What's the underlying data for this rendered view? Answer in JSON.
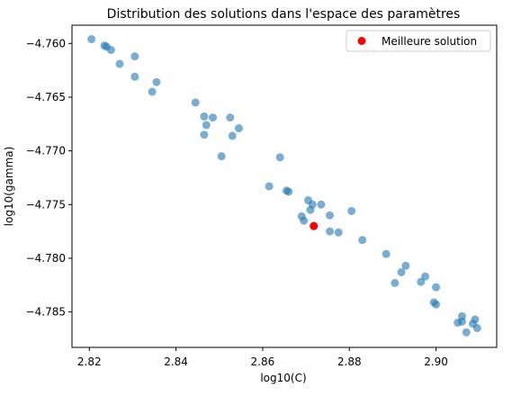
{
  "chart_data": {
    "type": "scatter",
    "title": "Distribution des solutions dans l'espace des paramètres",
    "xlabel": "log10(C)",
    "ylabel": "log10(gamma)",
    "xlim": [
      2.816,
      2.914
    ],
    "ylim": [
      -4.7883,
      -4.7583
    ],
    "xticks": [
      2.82,
      2.84,
      2.86,
      2.88,
      2.9
    ],
    "xtick_labels": [
      "2.82",
      "2.84",
      "2.86",
      "2.88",
      "2.90"
    ],
    "yticks": [
      -4.76,
      -4.765,
      -4.77,
      -4.775,
      -4.78,
      -4.785
    ],
    "ytick_labels": [
      "−4.760",
      "−4.765",
      "−4.770",
      "−4.775",
      "−4.780",
      "−4.785"
    ],
    "grid": false,
    "legend_position": "top-right",
    "series": [
      {
        "color": "#1f77b4",
        "points": [
          [
            2.8205,
            -4.7596
          ],
          [
            2.8235,
            -4.7602
          ],
          [
            2.824,
            -4.7603
          ],
          [
            2.825,
            -4.7606
          ],
          [
            2.827,
            -4.7619
          ],
          [
            2.8305,
            -4.7612
          ],
          [
            2.8305,
            -4.7631
          ],
          [
            2.8355,
            -4.7636
          ],
          [
            2.8345,
            -4.7645
          ],
          [
            2.8445,
            -4.7655
          ],
          [
            2.8465,
            -4.7668
          ],
          [
            2.8485,
            -4.7669
          ],
          [
            2.8525,
            -4.7669
          ],
          [
            2.847,
            -4.7676
          ],
          [
            2.8545,
            -4.7679
          ],
          [
            2.8465,
            -4.7685
          ],
          [
            2.853,
            -4.7686
          ],
          [
            2.864,
            -4.7706
          ],
          [
            2.8505,
            -4.7705
          ],
          [
            2.8615,
            -4.7733
          ],
          [
            2.8655,
            -4.7737
          ],
          [
            2.866,
            -4.7738
          ],
          [
            2.8705,
            -4.7746
          ],
          [
            2.8715,
            -4.775
          ],
          [
            2.8735,
            -4.775
          ],
          [
            2.871,
            -4.7755
          ],
          [
            2.8805,
            -4.7756
          ],
          [
            2.869,
            -4.7761
          ],
          [
            2.8755,
            -4.776
          ],
          [
            2.8695,
            -4.7765
          ],
          [
            2.8755,
            -4.7775
          ],
          [
            2.8775,
            -4.7776
          ],
          [
            2.883,
            -4.7783
          ],
          [
            2.8885,
            -4.7796
          ],
          [
            2.893,
            -4.7807
          ],
          [
            2.892,
            -4.7813
          ],
          [
            2.8975,
            -4.7817
          ],
          [
            2.8905,
            -4.7823
          ],
          [
            2.8965,
            -4.7822
          ],
          [
            2.9,
            -4.7827
          ],
          [
            2.8995,
            -4.7841
          ],
          [
            2.9,
            -4.7843
          ],
          [
            2.906,
            -4.7854
          ],
          [
            2.909,
            -4.7857
          ],
          [
            2.905,
            -4.786
          ],
          [
            2.906,
            -4.7859
          ],
          [
            2.9085,
            -4.7861
          ],
          [
            2.9095,
            -4.7865
          ],
          [
            2.907,
            -4.7869
          ]
        ]
      },
      {
        "name": "Meilleure solution",
        "color": "#ff0000",
        "points": [
          [
            2.8718,
            -4.777
          ]
        ]
      }
    ]
  }
}
